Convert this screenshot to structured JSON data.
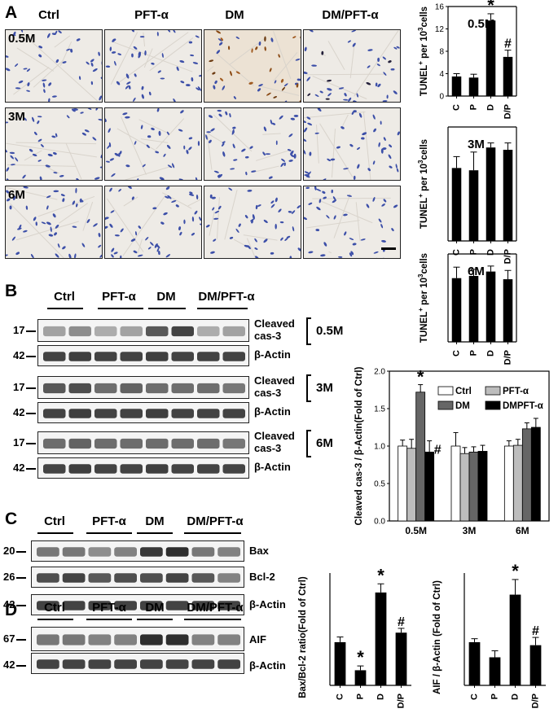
{
  "figure": {
    "panel_labels": [
      "A",
      "B",
      "C",
      "D"
    ],
    "groups": [
      "Ctrl",
      "PFT-α",
      "DM",
      "DM/PFT-α"
    ],
    "timepoints": [
      "0.5M",
      "3M",
      "6M"
    ],
    "panelA": {
      "tunel_charts": [
        {
          "timepoint": "0.5M",
          "ylabel_main": "TUNEL",
          "ylabel_sup": "+",
          "ylabel_rest": " per 10",
          "ylabel_sup2": "3",
          "ylabel_end": "cells",
          "categories": [
            "C",
            "P",
            "D",
            "D/P"
          ],
          "values": [
            3.5,
            3.3,
            13.5,
            7.0
          ],
          "errors": [
            0.5,
            0.6,
            1.2,
            1.2
          ],
          "ylim": [
            0,
            16
          ],
          "yticks": [
            "0",
            "4",
            "8",
            "12",
            "16"
          ],
          "annotations": [
            "",
            "",
            "*",
            "#"
          ]
        },
        {
          "timepoint": "3M",
          "ylabel_main": "TUNEL",
          "ylabel_sup": "+",
          "ylabel_rest": " per 10",
          "ylabel_sup2": "3",
          "ylabel_end": "cells",
          "categories": [
            "C",
            "P",
            "D",
            "D/P"
          ],
          "values": [
            3.2,
            3.1,
            4.1,
            4.0
          ],
          "errors": [
            0.5,
            0.8,
            0.2,
            0.3
          ],
          "ylim": [
            0,
            5
          ],
          "yticks": [],
          "annotations": [
            "",
            "",
            "",
            ""
          ]
        },
        {
          "timepoint": "6M",
          "ylabel_main": "TUNEL",
          "ylabel_sup": "+",
          "ylabel_rest": " per 10",
          "ylabel_sup2": "3",
          "ylabel_end": "cells",
          "categories": [
            "C",
            "P",
            "D",
            "D/P"
          ],
          "values": [
            2.9,
            3.0,
            3.2,
            2.85
          ],
          "errors": [
            0.5,
            0.3,
            0.25,
            0.4
          ],
          "ylim": [
            0,
            4
          ],
          "yticks": [],
          "annotations": [
            "",
            "",
            "",
            ""
          ]
        }
      ]
    },
    "panelB": {
      "blots": [
        {
          "timepoint": "0.5M",
          "mw_top": "17",
          "mw_bottom": "42",
          "top_label_1": "Cleaved",
          "top_label_2": "cas-3",
          "bottom_label": "β-Actin"
        },
        {
          "timepoint": "3M",
          "mw_top": "17",
          "mw_bottom": "42",
          "top_label_1": "Cleaved",
          "top_label_2": "cas-3",
          "bottom_label": "β-Actin"
        },
        {
          "timepoint": "6M",
          "mw_top": "17",
          "mw_bottom": "42",
          "top_label_1": "Cleaved",
          "top_label_2": "cas-3",
          "bottom_label": "β-Actin"
        }
      ],
      "chart": {
        "ylabel": "Cleaved cas-3 / β-Actin(Fold of Ctrl)",
        "categories": [
          "0.5M",
          "3M",
          "6M"
        ],
        "ylim": [
          0.0,
          2.0
        ],
        "yticks": [
          "0.0",
          "0.5",
          "1.0",
          "1.5",
          "2.0"
        ],
        "legend": [
          "Ctrl",
          "PFT-α",
          "DM",
          "DMPFT-α"
        ],
        "series": [
          {
            "name": "Ctrl",
            "color": "#ffffff",
            "values": [
              1.0,
              1.0,
              1.0
            ],
            "errors": [
              0.08,
              0.18,
              0.07
            ]
          },
          {
            "name": "PFT-α",
            "color": "#bdbdbd",
            "values": [
              0.97,
              0.9,
              1.01
            ],
            "errors": [
              0.12,
              0.08,
              0.08
            ]
          },
          {
            "name": "DM",
            "color": "#666666",
            "values": [
              1.72,
              0.92,
              1.23
            ],
            "errors": [
              0.1,
              0.07,
              0.08
            ]
          },
          {
            "name": "DMPFT-α",
            "color": "#000000",
            "values": [
              0.92,
              0.93,
              1.25
            ],
            "errors": [
              0.15,
              0.08,
              0.12
            ]
          }
        ],
        "annotations": {
          "star": "*",
          "hash": "#"
        }
      }
    },
    "panelC": {
      "mw": [
        "20",
        "26",
        "42"
      ],
      "labels": [
        "Bax",
        "Bcl-2",
        "β-Actin"
      ],
      "chart": {
        "ylabel": "Bax/Bcl-2 ratio(Fold of Ctrl)",
        "categories": [
          "C",
          "P",
          "D",
          "D/P"
        ],
        "values": [
          1.0,
          0.35,
          2.15,
          1.22
        ],
        "errors": [
          0.12,
          0.1,
          0.2,
          0.1
        ],
        "ylim": [
          0,
          2.6
        ],
        "annotations": [
          "",
          "*",
          "*",
          "#"
        ]
      }
    },
    "panelD": {
      "mw": [
        "67",
        "42"
      ],
      "labels": [
        "AIF",
        "β-Actin"
      ],
      "chart": {
        "ylabel": "AIF / β-Actin (Fold of Ctrl)",
        "categories": [
          "C",
          "P",
          "D",
          "D/P"
        ],
        "values": [
          1.0,
          0.65,
          2.1,
          0.93
        ],
        "errors": [
          0.08,
          0.15,
          0.35,
          0.18
        ],
        "ylim": [
          0,
          2.6
        ],
        "annotations": [
          "",
          "",
          "*",
          "#"
        ]
      }
    }
  },
  "chart_data": [
    {
      "type": "bar",
      "title": "0.5M",
      "categories": [
        "C",
        "P",
        "D",
        "D/P"
      ],
      "values": [
        3.5,
        3.3,
        13.5,
        7.0
      ],
      "ylabel": "TUNEL+ per 10^3 cells",
      "ylim": [
        0,
        16
      ]
    },
    {
      "type": "bar",
      "title": "3M",
      "categories": [
        "C",
        "P",
        "D",
        "D/P"
      ],
      "values": [
        3.2,
        3.1,
        4.1,
        4.0
      ],
      "ylabel": "TUNEL+ per 10^3 cells"
    },
    {
      "type": "bar",
      "title": "6M",
      "categories": [
        "C",
        "P",
        "D",
        "D/P"
      ],
      "values": [
        2.9,
        3.0,
        3.2,
        2.85
      ],
      "ylabel": "TUNEL+ per 10^3 cells"
    },
    {
      "type": "bar",
      "categories": [
        "0.5M",
        "3M",
        "6M"
      ],
      "ylabel": "Cleaved cas-3 / β-Actin(Fold of Ctrl)",
      "ylim": [
        0.0,
        2.0
      ],
      "series": [
        {
          "name": "Ctrl",
          "values": [
            1.0,
            1.0,
            1.0
          ]
        },
        {
          "name": "PFT-α",
          "values": [
            0.97,
            0.9,
            1.01
          ]
        },
        {
          "name": "DM",
          "values": [
            1.72,
            0.92,
            1.23
          ]
        },
        {
          "name": "DMPFT-α",
          "values": [
            0.92,
            0.93,
            1.25
          ]
        }
      ]
    },
    {
      "type": "bar",
      "categories": [
        "C",
        "P",
        "D",
        "D/P"
      ],
      "values": [
        1.0,
        0.35,
        2.15,
        1.22
      ],
      "ylabel": "Bax/Bcl-2 ratio(Fold of Ctrl)"
    },
    {
      "type": "bar",
      "categories": [
        "C",
        "P",
        "D",
        "D/P"
      ],
      "values": [
        1.0,
        0.65,
        2.1,
        0.93
      ],
      "ylabel": "AIF / β-Actin (Fold of Ctrl)"
    }
  ]
}
